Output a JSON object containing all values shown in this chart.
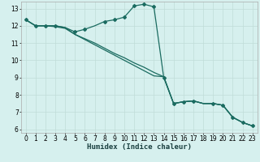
{
  "xlabel": "Humidex (Indice chaleur)",
  "bg_color": "#d6f0ee",
  "grid_color": "#c0ddd8",
  "line_color": "#1a6b60",
  "xlim": [
    -0.5,
    23.5
  ],
  "ylim": [
    5.8,
    13.4
  ],
  "xticks": [
    0,
    1,
    2,
    3,
    4,
    5,
    6,
    7,
    8,
    9,
    10,
    11,
    12,
    13,
    14,
    15,
    16,
    17,
    18,
    19,
    20,
    21,
    22,
    23
  ],
  "yticks": [
    6,
    7,
    8,
    9,
    10,
    11,
    12,
    13
  ],
  "series1_x": [
    0,
    1,
    2,
    3,
    4,
    5,
    6,
    7,
    8,
    9,
    10,
    11,
    12,
    13,
    14,
    15,
    16,
    17,
    18,
    19,
    20,
    21,
    22,
    23
  ],
  "series1_y": [
    12.35,
    12.0,
    12.0,
    12.0,
    11.9,
    11.65,
    11.8,
    12.0,
    12.25,
    12.35,
    12.5,
    13.15,
    13.25,
    13.1,
    9.0,
    7.5,
    7.6,
    7.65,
    7.5,
    7.5,
    7.4,
    6.7,
    6.4,
    6.2
  ],
  "series2_x": [
    0,
    1,
    2,
    3,
    4,
    5,
    6,
    7,
    8,
    9,
    10,
    11,
    12,
    13,
    14,
    15,
    16,
    17,
    18,
    19,
    20,
    21,
    22,
    23
  ],
  "series2_y": [
    12.35,
    12.0,
    12.0,
    12.0,
    11.9,
    11.5,
    11.25,
    11.0,
    10.7,
    10.4,
    10.15,
    9.85,
    9.6,
    9.3,
    9.05,
    7.5,
    7.6,
    7.65,
    7.5,
    7.5,
    7.4,
    6.7,
    6.4,
    6.2
  ],
  "series3_x": [
    0,
    1,
    2,
    3,
    4,
    5,
    6,
    7,
    8,
    9,
    10,
    11,
    12,
    13,
    14,
    15,
    16,
    17,
    18,
    19,
    20,
    21,
    22,
    23
  ],
  "series3_y": [
    12.35,
    12.0,
    12.0,
    11.95,
    11.85,
    11.5,
    11.2,
    10.9,
    10.6,
    10.3,
    10.0,
    9.7,
    9.4,
    9.1,
    9.05,
    7.5,
    7.6,
    7.65,
    7.5,
    7.5,
    7.4,
    6.7,
    6.4,
    6.2
  ],
  "markers_s1_x": [
    0,
    1,
    2,
    3,
    5,
    6,
    8,
    9,
    10,
    11,
    12,
    13,
    14,
    15,
    16,
    17,
    19,
    20,
    21,
    22,
    23
  ],
  "markers_s1_y": [
    12.35,
    12.0,
    12.0,
    12.0,
    11.65,
    11.8,
    12.25,
    12.35,
    12.5,
    13.15,
    13.25,
    13.1,
    9.0,
    7.5,
    7.6,
    7.65,
    7.5,
    7.4,
    6.7,
    6.4,
    6.2
  ],
  "tick_fontsize": 5.5,
  "label_fontsize": 6.5
}
